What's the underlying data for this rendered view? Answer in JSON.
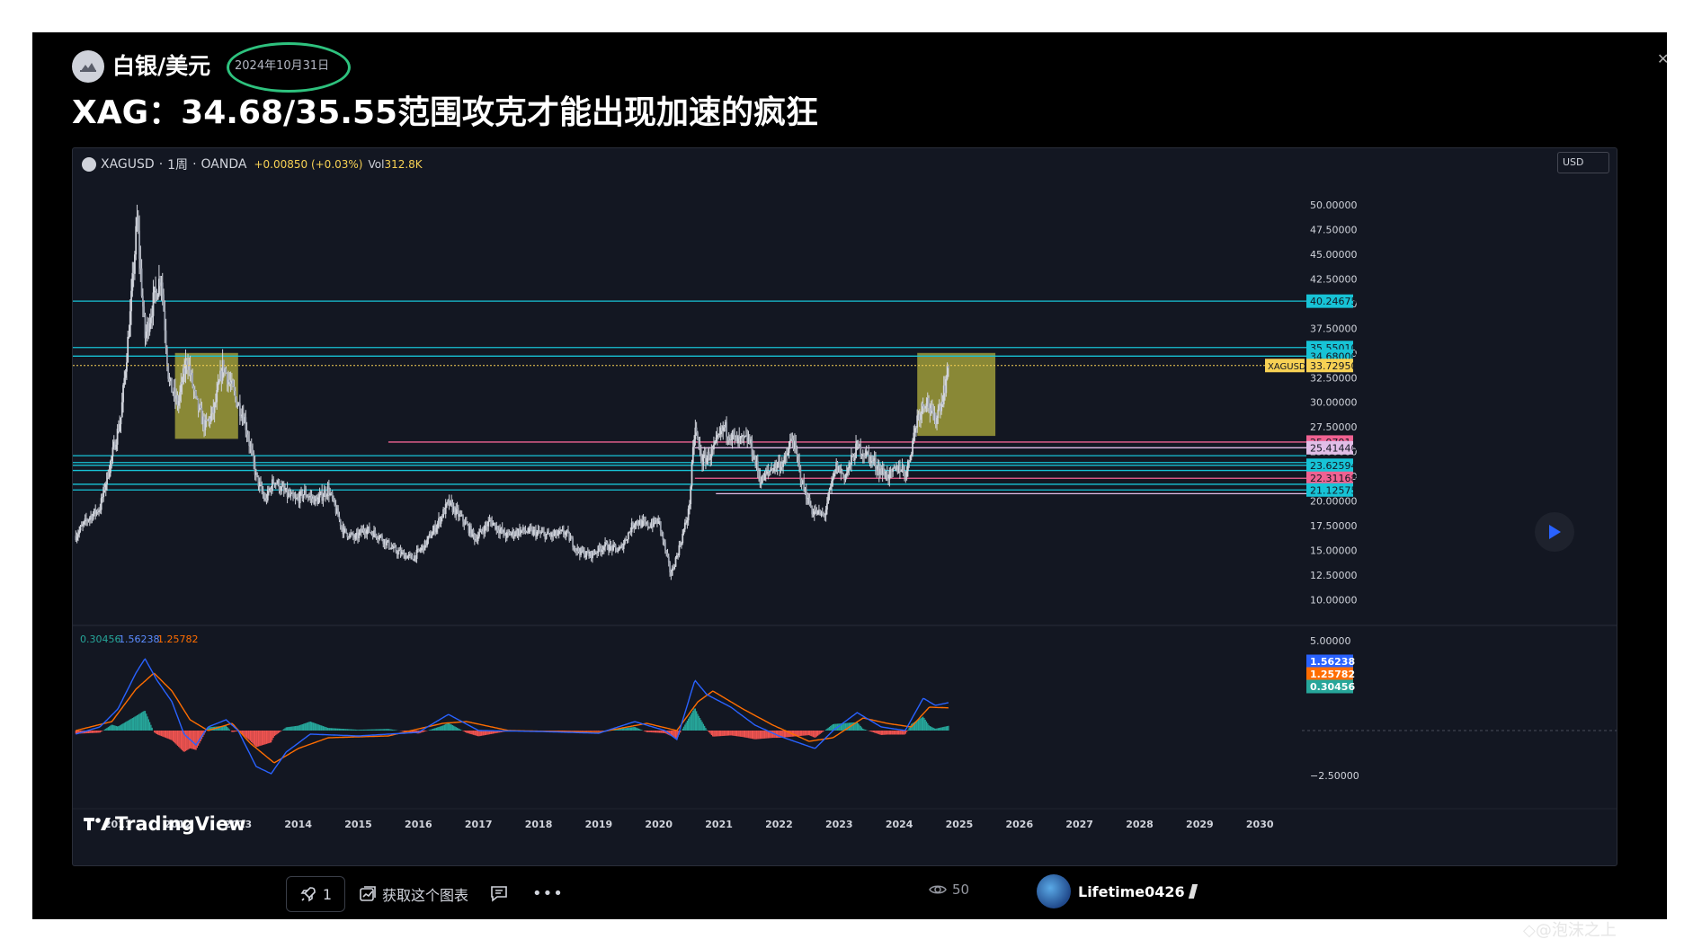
{
  "header": {
    "symbol_name": "白银/美元",
    "publish_date": "2024年10月31日",
    "title": "XAG：34.68/35.55范围攻克才能出现加速的疯狂"
  },
  "legend": {
    "symbol": "XAGUSD",
    "interval": "1周",
    "exchange": "OANDA",
    "change": "+0.00850 (+0.03%)",
    "volume_label": "Vol",
    "volume_value": "312.8K",
    "separator": "·"
  },
  "currency": "USD",
  "branding": {
    "name": "TradingView",
    "watermark": "◇@泡沫之上"
  },
  "bottom_bar": {
    "boost_count": "1",
    "get_chart_label": "获取这个图表",
    "views": "50",
    "author": "Lifetime0426"
  },
  "colors": {
    "background": "#131722",
    "candle": "#d1d4dc",
    "cyan_line": "#17c3d6",
    "pink_line": "#f06292",
    "box_fill": "#a3a13a",
    "price_tag": "#f7d154",
    "macd_line": "#2962ff",
    "signal_line": "#ff6d00",
    "hist_up": "#26a69a",
    "hist_down": "#ef5350"
  },
  "chart_data": {
    "type": "candlestick",
    "interval": "weekly",
    "price_axis": {
      "range": [
        7.5,
        53.0
      ],
      "ticks": [
        10,
        12.5,
        15,
        17.5,
        20,
        22.5,
        25,
        27.5,
        30,
        32.5,
        35,
        37.5,
        40,
        42.5,
        45,
        47.5,
        50
      ],
      "tick_labels": [
        "10.00000",
        "12.50000",
        "15.00000",
        "17.50000",
        "20.00000",
        "22.50000",
        "25.00000",
        "27.50000",
        "30.00000",
        "32.50000",
        "35.00000",
        "37.50000",
        "40.00000",
        "42.50000",
        "45.00000",
        "47.50000",
        "50.00000"
      ]
    },
    "time_axis": {
      "labels": [
        "2011",
        "2012",
        "2013",
        "2014",
        "2015",
        "2016",
        "2017",
        "2018",
        "2019",
        "2020",
        "2021",
        "2022",
        "2023",
        "2024",
        "2025",
        "2026",
        "2027",
        "2028",
        "2029",
        "2030"
      ],
      "start": 2010.25,
      "end": 2030.7
    },
    "anchors": [
      [
        2010.3,
        16.5
      ],
      [
        2010.5,
        18.2
      ],
      [
        2010.7,
        19.3
      ],
      [
        2010.9,
        24.5
      ],
      [
        2011.05,
        28.5
      ],
      [
        2011.2,
        38.5
      ],
      [
        2011.32,
        48.5
      ],
      [
        2011.45,
        36.5
      ],
      [
        2011.6,
        40.5
      ],
      [
        2011.72,
        43.0
      ],
      [
        2011.85,
        32.0
      ],
      [
        2012.0,
        29.8
      ],
      [
        2012.15,
        34.5
      ],
      [
        2012.3,
        30.0
      ],
      [
        2012.45,
        27.5
      ],
      [
        2012.6,
        29.2
      ],
      [
        2012.75,
        33.8
      ],
      [
        2012.95,
        30.5
      ],
      [
        2013.1,
        28.5
      ],
      [
        2013.3,
        22.5
      ],
      [
        2013.45,
        20.0
      ],
      [
        2013.6,
        22.2
      ],
      [
        2013.75,
        21.0
      ],
      [
        2013.95,
        20.0
      ],
      [
        2014.1,
        20.8
      ],
      [
        2014.3,
        20.0
      ],
      [
        2014.5,
        21.2
      ],
      [
        2014.75,
        17.0
      ],
      [
        2014.95,
        16.2
      ],
      [
        2015.1,
        17.2
      ],
      [
        2015.35,
        16.5
      ],
      [
        2015.6,
        15.0
      ],
      [
        2015.9,
        14.2
      ],
      [
        2016.1,
        15.5
      ],
      [
        2016.3,
        17.5
      ],
      [
        2016.5,
        19.8
      ],
      [
        2016.75,
        18.0
      ],
      [
        2016.95,
        16.2
      ],
      [
        2017.2,
        18.0
      ],
      [
        2017.45,
        16.5
      ],
      [
        2017.7,
        17.0
      ],
      [
        2017.95,
        16.8
      ],
      [
        2018.2,
        16.5
      ],
      [
        2018.45,
        16.8
      ],
      [
        2018.65,
        15.0
      ],
      [
        2018.85,
        14.5
      ],
      [
        2019.1,
        15.5
      ],
      [
        2019.35,
        15.0
      ],
      [
        2019.6,
        18.0
      ],
      [
        2019.8,
        17.5
      ],
      [
        2020.0,
        18.0
      ],
      [
        2020.2,
        12.5
      ],
      [
        2020.35,
        15.5
      ],
      [
        2020.5,
        19.0
      ],
      [
        2020.6,
        27.5
      ],
      [
        2020.72,
        24.0
      ],
      [
        2020.9,
        25.0
      ],
      [
        2021.08,
        27.5
      ],
      [
        2021.3,
        26.0
      ],
      [
        2021.5,
        26.2
      ],
      [
        2021.7,
        22.0
      ],
      [
        2021.9,
        23.5
      ],
      [
        2022.1,
        24.0
      ],
      [
        2022.22,
        26.5
      ],
      [
        2022.4,
        21.5
      ],
      [
        2022.55,
        19.0
      ],
      [
        2022.75,
        18.5
      ],
      [
        2022.95,
        23.5
      ],
      [
        2023.1,
        22.5
      ],
      [
        2023.3,
        25.5
      ],
      [
        2023.5,
        24.5
      ],
      [
        2023.7,
        23.0
      ],
      [
        2023.85,
        22.5
      ],
      [
        2024.0,
        23.5
      ],
      [
        2024.12,
        22.8
      ],
      [
        2024.3,
        28.5
      ],
      [
        2024.45,
        30.5
      ],
      [
        2024.58,
        28.0
      ],
      [
        2024.72,
        30.5
      ],
      [
        2024.83,
        33.8
      ]
    ],
    "horizontal_levels": [
      {
        "price": 40.24675,
        "label": "40.24675",
        "color": "#17c3d6"
      },
      {
        "price": 35.5501,
        "label": "35.55010",
        "color": "#17c3d6"
      },
      {
        "price": 34.68,
        "label": "34.68000",
        "color": "#17c3d6"
      },
      {
        "price": 25.97914,
        "label": "25.97914",
        "color": "#f06292",
        "start": 2015.5
      },
      {
        "price": 25.4,
        "label": "25.41440",
        "color": "#e1bee7",
        "start": 2020.6
      },
      {
        "price": 24.6,
        "label": "",
        "color": "#17c3d6"
      },
      {
        "price": 23.9,
        "label": "",
        "color": "#17c3d6"
      },
      {
        "price": 23.62594,
        "label": "23.62594",
        "color": "#17c3d6"
      },
      {
        "price": 23.1,
        "label": "",
        "color": "#17c3d6"
      },
      {
        "price": 22.31168,
        "label": "22.31168",
        "color": "#f06292",
        "start": 2020.6
      },
      {
        "price": 21.7,
        "label": "",
        "color": "#17c3d6"
      },
      {
        "price": 21.12575,
        "label": "21.12575",
        "color": "#17c3d6"
      },
      {
        "price": 20.75,
        "label": "",
        "color": "#e1bee7",
        "start": 2020.95
      }
    ],
    "last_price": {
      "symbol": "XAGUSD",
      "price": 33.7295,
      "label": "33.72950"
    },
    "boxes": [
      {
        "x0": 2011.95,
        "x1": 2013.0,
        "y0": 26.3,
        "y1": 35.0
      },
      {
        "x0": 2024.3,
        "x1": 2025.6,
        "y0": 26.6,
        "y1": 35.0
      }
    ],
    "indicator": {
      "name": "MACD",
      "values": [
        "0.30456",
        "1.56238",
        "1.25782"
      ],
      "ticks": [
        5,
        -2.5
      ],
      "tick_labels": [
        "5.00000",
        "−2.50000"
      ],
      "range": [
        -3.6,
        5.8
      ],
      "macd_anchors": [
        [
          2010.3,
          -0.2
        ],
        [
          2010.7,
          0.2
        ],
        [
          2011.0,
          1.2
        ],
        [
          2011.3,
          3.2
        ],
        [
          2011.45,
          4.0
        ],
        [
          2011.65,
          2.8
        ],
        [
          2011.9,
          1.6
        ],
        [
          2012.1,
          -0.2
        ],
        [
          2012.3,
          -0.8
        ],
        [
          2012.5,
          0.2
        ],
        [
          2012.8,
          0.6
        ],
        [
          2013.0,
          0.0
        ],
        [
          2013.3,
          -2.0
        ],
        [
          2013.55,
          -2.4
        ],
        [
          2013.8,
          -1.2
        ],
        [
          2014.2,
          -0.2
        ],
        [
          2015.0,
          -0.3
        ],
        [
          2016.0,
          -0.1
        ],
        [
          2016.5,
          0.9
        ],
        [
          2017.0,
          0.0
        ],
        [
          2018.0,
          -0.05
        ],
        [
          2019.0,
          -0.15
        ],
        [
          2019.6,
          0.5
        ],
        [
          2020.1,
          0.0
        ],
        [
          2020.3,
          -0.5
        ],
        [
          2020.6,
          2.8
        ],
        [
          2020.8,
          2.0
        ],
        [
          2021.2,
          1.3
        ],
        [
          2021.6,
          0.3
        ],
        [
          2022.0,
          -0.3
        ],
        [
          2022.6,
          -1.0
        ],
        [
          2022.9,
          0.0
        ],
        [
          2023.3,
          1.0
        ],
        [
          2023.7,
          0.2
        ],
        [
          2024.1,
          0.0
        ],
        [
          2024.4,
          1.8
        ],
        [
          2024.6,
          1.4
        ],
        [
          2024.83,
          1.56
        ]
      ],
      "signal_anchors": [
        [
          2010.3,
          0.0
        ],
        [
          2010.9,
          0.5
        ],
        [
          2011.3,
          2.3
        ],
        [
          2011.6,
          3.2
        ],
        [
          2011.9,
          2.2
        ],
        [
          2012.2,
          0.6
        ],
        [
          2012.5,
          0.0
        ],
        [
          2012.9,
          0.4
        ],
        [
          2013.2,
          -0.7
        ],
        [
          2013.6,
          -1.8
        ],
        [
          2014.0,
          -1.0
        ],
        [
          2014.5,
          -0.4
        ],
        [
          2015.5,
          -0.3
        ],
        [
          2016.4,
          0.4
        ],
        [
          2016.8,
          0.5
        ],
        [
          2017.5,
          0.0
        ],
        [
          2019.0,
          -0.1
        ],
        [
          2019.8,
          0.4
        ],
        [
          2020.3,
          0.0
        ],
        [
          2020.65,
          1.6
        ],
        [
          2020.9,
          2.2
        ],
        [
          2021.4,
          1.2
        ],
        [
          2021.9,
          0.3
        ],
        [
          2022.5,
          -0.6
        ],
        [
          2022.9,
          -0.4
        ],
        [
          2023.4,
          0.7
        ],
        [
          2023.8,
          0.4
        ],
        [
          2024.2,
          0.2
        ],
        [
          2024.5,
          1.3
        ],
        [
          2024.83,
          1.26
        ]
      ]
    }
  }
}
